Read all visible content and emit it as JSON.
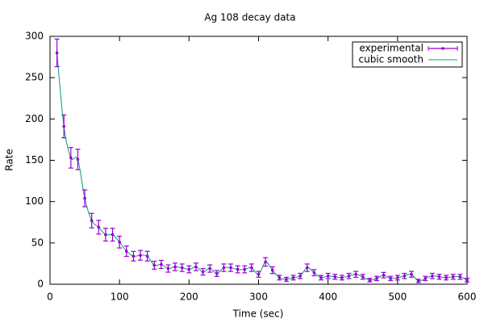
{
  "chart_data": {
    "type": "line",
    "title": "Ag 108 decay data",
    "xlabel": "Time (sec)",
    "ylabel": "Rate",
    "x": [
      10,
      20,
      30,
      40,
      50,
      60,
      70,
      80,
      90,
      100,
      110,
      120,
      130,
      140,
      150,
      160,
      170,
      180,
      190,
      200,
      210,
      220,
      230,
      240,
      250,
      260,
      270,
      280,
      290,
      300,
      310,
      320,
      330,
      340,
      350,
      360,
      370,
      380,
      390,
      400,
      410,
      420,
      430,
      440,
      450,
      460,
      470,
      480,
      490,
      500,
      510,
      520,
      530,
      540,
      550,
      560,
      570,
      580,
      590,
      600
    ],
    "series": [
      {
        "name": "experimental",
        "color": "#9400d3",
        "values": [
          280,
          191,
          153,
          151,
          104,
          77,
          69,
          60,
          60,
          51,
          40,
          34,
          35,
          34,
          23,
          24,
          19,
          21,
          20,
          18,
          21,
          15,
          19,
          13,
          20,
          20,
          18,
          18,
          20,
          12,
          27,
          17,
          8,
          6,
          8,
          10,
          20,
          14,
          8,
          10,
          9,
          8,
          10,
          12,
          9,
          5,
          7,
          11,
          7,
          8,
          10,
          12,
          4,
          7,
          10,
          9,
          8,
          9,
          9,
          5
        ],
        "errors": [
          16.7,
          13.8,
          12.4,
          12.3,
          10.2,
          8.8,
          8.3,
          7.7,
          7.7,
          7.1,
          6.3,
          5.8,
          5.9,
          5.8,
          4.8,
          4.9,
          4.4,
          4.6,
          4.5,
          4.2,
          4.6,
          3.9,
          4.4,
          3.6,
          4.5,
          4.5,
          4.2,
          4.2,
          4.5,
          3.5,
          5.2,
          4.1,
          2.8,
          2.4,
          2.8,
          3.2,
          4.5,
          3.7,
          2.8,
          3.2,
          3,
          2.8,
          3.2,
          3.5,
          3,
          2.2,
          2.6,
          3.3,
          2.6,
          2.8,
          3.2,
          3.5,
          2,
          2.6,
          3.2,
          3,
          2.8,
          3,
          3,
          2.2
        ]
      },
      {
        "name": "cubic smooth",
        "color": "#009e73",
        "values": [
          280,
          191,
          153,
          151,
          104,
          77,
          69,
          60,
          60,
          51,
          40,
          34,
          35,
          34,
          23,
          24,
          19,
          21,
          20,
          18,
          21,
          15,
          19,
          13,
          20,
          20,
          18,
          18,
          20,
          12,
          27,
          17,
          8,
          6,
          8,
          10,
          20,
          14,
          8,
          10,
          9,
          8,
          10,
          12,
          9,
          5,
          7,
          11,
          7,
          8,
          10,
          12,
          4,
          7,
          10,
          9,
          8,
          9,
          9,
          5
        ]
      }
    ],
    "xlim": [
      0,
      600
    ],
    "xticks": [
      0,
      100,
      200,
      300,
      400,
      500,
      600
    ],
    "ylim": [
      0,
      300
    ],
    "yticks": [
      0,
      50,
      100,
      150,
      200,
      250,
      300
    ],
    "legend": "top-right"
  }
}
